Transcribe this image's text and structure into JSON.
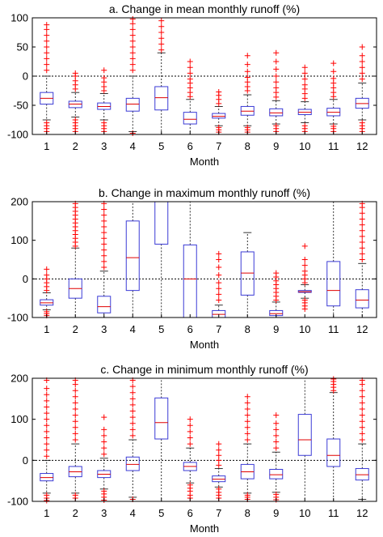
{
  "colors": {
    "box": "#3b3bd6",
    "median": "#e00000",
    "outlier": "#ff0000",
    "whisker": "#000000",
    "zero_line": "#000000",
    "axis": "#000000"
  },
  "chart_data": [
    {
      "type": "boxplot",
      "title": "a. Change in mean monthly runoff (%)",
      "xlabel": "Month",
      "ylabel": "",
      "categories": [
        "1",
        "2",
        "3",
        "4",
        "5",
        "6",
        "7",
        "8",
        "9",
        "10",
        "11",
        "12"
      ],
      "ylim": [
        -100,
        100
      ],
      "yticks": [
        -100,
        -50,
        0,
        50,
        100
      ],
      "zero_line": true,
      "boxes": [
        {
          "q1": -48,
          "median": -38,
          "q3": -28,
          "wlo": -75,
          "whi": 0,
          "outliers_lo": [
            -80,
            -85,
            -90,
            -95
          ],
          "outliers_hi": [
            10,
            20,
            30,
            40,
            50,
            60,
            70,
            80,
            88
          ]
        },
        {
          "q1": -54,
          "median": -48,
          "q3": -43,
          "wlo": -70,
          "whi": -28,
          "outliers_lo": [
            -75,
            -80,
            -85,
            -90,
            -95
          ],
          "outliers_hi": [
            -22,
            -15,
            -8,
            0,
            5
          ]
        },
        {
          "q1": -57,
          "median": -52,
          "q3": -46,
          "wlo": -75,
          "whi": -30,
          "outliers_lo": [
            -80,
            -85,
            -90,
            -95
          ],
          "outliers_hi": [
            -25,
            -18,
            -10,
            -3,
            10
          ]
        },
        {
          "q1": -60,
          "median": -48,
          "q3": -38,
          "wlo": -95,
          "whi": 0,
          "outliers_lo": [
            -98
          ],
          "outliers_hi": [
            10,
            20,
            30,
            40,
            50,
            60,
            70,
            80,
            90,
            98
          ]
        },
        {
          "q1": -58,
          "median": -37,
          "q3": -18,
          "wlo": -100,
          "whi": 40,
          "outliers_lo": [],
          "outliers_hi": [
            45,
            55,
            65,
            75,
            85,
            95
          ]
        },
        {
          "q1": -82,
          "median": -74,
          "q3": -62,
          "wlo": -100,
          "whi": -40,
          "outliers_lo": [],
          "outliers_hi": [
            -35,
            -28,
            -20,
            -12,
            -5,
            5,
            15,
            25
          ]
        },
        {
          "q1": -72,
          "median": -69,
          "q3": -64,
          "wlo": -85,
          "whi": -52,
          "outliers_lo": [
            -88,
            -92,
            -96
          ],
          "outliers_hi": [
            -47,
            -40,
            -33,
            -27
          ]
        },
        {
          "q1": -67,
          "median": -60,
          "q3": -52,
          "wlo": -85,
          "whi": -32,
          "outliers_lo": [
            -88,
            -92,
            -96
          ],
          "outliers_hi": [
            -25,
            -18,
            -10,
            -2,
            8,
            20,
            35
          ]
        },
        {
          "q1": -68,
          "median": -63,
          "q3": -56,
          "wlo": -82,
          "whi": -42,
          "outliers_lo": [
            -85,
            -90,
            -95
          ],
          "outliers_hi": [
            -36,
            -28,
            -20,
            -10,
            0,
            12,
            25,
            40
          ]
        },
        {
          "q1": -66,
          "median": -62,
          "q3": -57,
          "wlo": -80,
          "whi": -44,
          "outliers_lo": [
            -85,
            -90,
            -95
          ],
          "outliers_hi": [
            -38,
            -30,
            -22,
            -15,
            -5,
            5,
            15
          ]
        },
        {
          "q1": -68,
          "median": -62,
          "q3": -55,
          "wlo": -82,
          "whi": -40,
          "outliers_lo": [
            -86,
            -90,
            -95
          ],
          "outliers_hi": [
            -35,
            -28,
            -20,
            -12,
            -4,
            8,
            22
          ]
        },
        {
          "q1": -55,
          "median": -47,
          "q3": -38,
          "wlo": -75,
          "whi": -12,
          "outliers_lo": [
            -80,
            -85,
            -90,
            -95
          ],
          "outliers_hi": [
            -5,
            5,
            15,
            25,
            35,
            50
          ]
        }
      ]
    },
    {
      "type": "boxplot",
      "title": "b. Change in maximum monthly runoff (%)",
      "xlabel": "Month",
      "ylabel": "",
      "categories": [
        "1",
        "2",
        "3",
        "4",
        "5",
        "6",
        "7",
        "8",
        "9",
        "10",
        "11",
        "12"
      ],
      "ylim": [
        -100,
        200
      ],
      "yticks": [
        -100,
        0,
        100,
        200
      ],
      "zero_line": true,
      "boxes": [
        {
          "q1": -68,
          "median": -62,
          "q3": -54,
          "wlo": -80,
          "whi": -36,
          "outliers_lo": [
            -85,
            -90,
            -95
          ],
          "outliers_hi": [
            -30,
            -20,
            -10,
            0,
            10,
            25
          ]
        },
        {
          "q1": -50,
          "median": -25,
          "q3": 0,
          "wlo": -100,
          "whi": 80,
          "outliers_lo": [],
          "outliers_hi": [
            85,
            95,
            105,
            115,
            125,
            135,
            145,
            155,
            165,
            175,
            185,
            195
          ]
        },
        {
          "q1": -88,
          "median": -72,
          "q3": -45,
          "wlo": -100,
          "whi": 20,
          "outliers_lo": [],
          "outliers_hi": [
            30,
            45,
            60,
            75,
            90,
            105,
            120,
            135,
            150,
            165,
            180,
            195
          ]
        },
        {
          "q1": -30,
          "median": 55,
          "q3": 150,
          "wlo": -100,
          "whi": 200,
          "outliers_lo": [],
          "outliers_hi": []
        },
        {
          "q1": 90,
          "median": 200,
          "q3": 200,
          "wlo": -100,
          "whi": 200,
          "outliers_lo": [],
          "outliers_hi": []
        },
        {
          "q1": -100,
          "median": 0,
          "q3": 88,
          "wlo": -100,
          "whi": 200,
          "outliers_lo": [],
          "outliers_hi": []
        },
        {
          "q1": -100,
          "median": -92,
          "q3": -82,
          "wlo": -100,
          "whi": -68,
          "outliers_lo": [],
          "outliers_hi": [
            -55,
            -40,
            -25,
            -10,
            10,
            30,
            50,
            65
          ]
        },
        {
          "q1": -42,
          "median": 15,
          "q3": 70,
          "wlo": -100,
          "whi": 120,
          "outliers_lo": [],
          "outliers_hi": []
        },
        {
          "q1": -95,
          "median": -90,
          "q3": -82,
          "wlo": -100,
          "whi": -60,
          "outliers_lo": [],
          "outliers_hi": [
            -55,
            -45,
            -35,
            -25,
            -15,
            -5,
            5,
            15
          ]
        },
        {
          "q1": -35,
          "median": -33,
          "q3": -30,
          "wlo": -50,
          "whi": -15,
          "outliers_lo": [
            -55,
            -62,
            -70,
            -78
          ],
          "outliers_hi": [
            -10,
            0,
            10,
            20,
            35,
            50,
            85
          ]
        },
        {
          "q1": -70,
          "median": -30,
          "q3": 45,
          "wlo": -100,
          "whi": 200,
          "outliers_lo": [],
          "outliers_hi": []
        },
        {
          "q1": -75,
          "median": -55,
          "q3": -28,
          "wlo": -100,
          "whi": 40,
          "outliers_lo": [],
          "outliers_hi": [
            50,
            65,
            80,
            95,
            110,
            125,
            140,
            155,
            170,
            185,
            195
          ]
        }
      ]
    },
    {
      "type": "boxplot",
      "title": "c. Change in minimum monthly runoff (%)",
      "xlabel": "Month",
      "ylabel": "",
      "categories": [
        "1",
        "2",
        "3",
        "4",
        "5",
        "6",
        "7",
        "8",
        "9",
        "10",
        "11",
        "12"
      ],
      "ylim": [
        -100,
        200
      ],
      "yticks": [
        -100,
        0,
        100,
        200
      ],
      "zero_line": true,
      "boxes": [
        {
          "q1": -50,
          "median": -42,
          "q3": -32,
          "wlo": -80,
          "whi": 0,
          "outliers_lo": [
            -85,
            -92,
            -98
          ],
          "outliers_hi": [
            10,
            25,
            40,
            55,
            70,
            85,
            100,
            115,
            130,
            145,
            160,
            175,
            195
          ]
        },
        {
          "q1": -40,
          "median": -28,
          "q3": -15,
          "wlo": -80,
          "whi": 40,
          "outliers_lo": [
            -85,
            -92
          ],
          "outliers_hi": [
            50,
            65,
            80,
            95,
            110,
            125,
            140,
            155,
            170,
            185,
            195
          ]
        },
        {
          "q1": -42,
          "median": -34,
          "q3": -25,
          "wlo": -70,
          "whi": 5,
          "outliers_lo": [
            -75,
            -82,
            -90,
            -97
          ],
          "outliers_hi": [
            15,
            30,
            45,
            60,
            75,
            105
          ]
        },
        {
          "q1": -25,
          "median": -10,
          "q3": 8,
          "wlo": -90,
          "whi": 50,
          "outliers_lo": [
            -95
          ],
          "outliers_hi": [
            60,
            75,
            90,
            105,
            120,
            135,
            150,
            165,
            180,
            195
          ]
        },
        {
          "q1": 52,
          "median": 92,
          "q3": 152,
          "wlo": -100,
          "whi": 200,
          "outliers_lo": [],
          "outliers_hi": []
        },
        {
          "q1": -25,
          "median": -15,
          "q3": -5,
          "wlo": -55,
          "whi": 30,
          "outliers_lo": [
            -60,
            -68,
            -75,
            -85,
            -92
          ],
          "outliers_hi": [
            40,
            55,
            70,
            85,
            100
          ]
        },
        {
          "q1": -52,
          "median": -46,
          "q3": -38,
          "wlo": -65,
          "whi": -20,
          "outliers_lo": [
            -70,
            -78,
            -85,
            -92
          ],
          "outliers_hi": [
            -12,
            0,
            12,
            25,
            40
          ]
        },
        {
          "q1": -45,
          "median": -28,
          "q3": -10,
          "wlo": -80,
          "whi": 40,
          "outliers_lo": [
            -85,
            -90,
            -95
          ],
          "outliers_hi": [
            50,
            65,
            80,
            95,
            110,
            125,
            140,
            155
          ]
        },
        {
          "q1": -45,
          "median": -35,
          "q3": -22,
          "wlo": -78,
          "whi": 20,
          "outliers_lo": [
            -83,
            -90,
            -96
          ],
          "outliers_hi": [
            30,
            45,
            60,
            75,
            90,
            110
          ]
        },
        {
          "q1": 12,
          "median": 50,
          "q3": 112,
          "wlo": -100,
          "whi": 200,
          "outliers_lo": [],
          "outliers_hi": []
        },
        {
          "q1": -15,
          "median": 12,
          "q3": 52,
          "wlo": -100,
          "whi": 165,
          "outliers_lo": [],
          "outliers_hi": [
            170,
            178,
            185,
            192,
            198
          ]
        },
        {
          "q1": -48,
          "median": -35,
          "q3": -20,
          "wlo": -95,
          "whi": 40,
          "outliers_lo": [],
          "outliers_hi": [
            50,
            65,
            80,
            95,
            110,
            125,
            140,
            155,
            170,
            185,
            195
          ]
        }
      ]
    }
  ]
}
